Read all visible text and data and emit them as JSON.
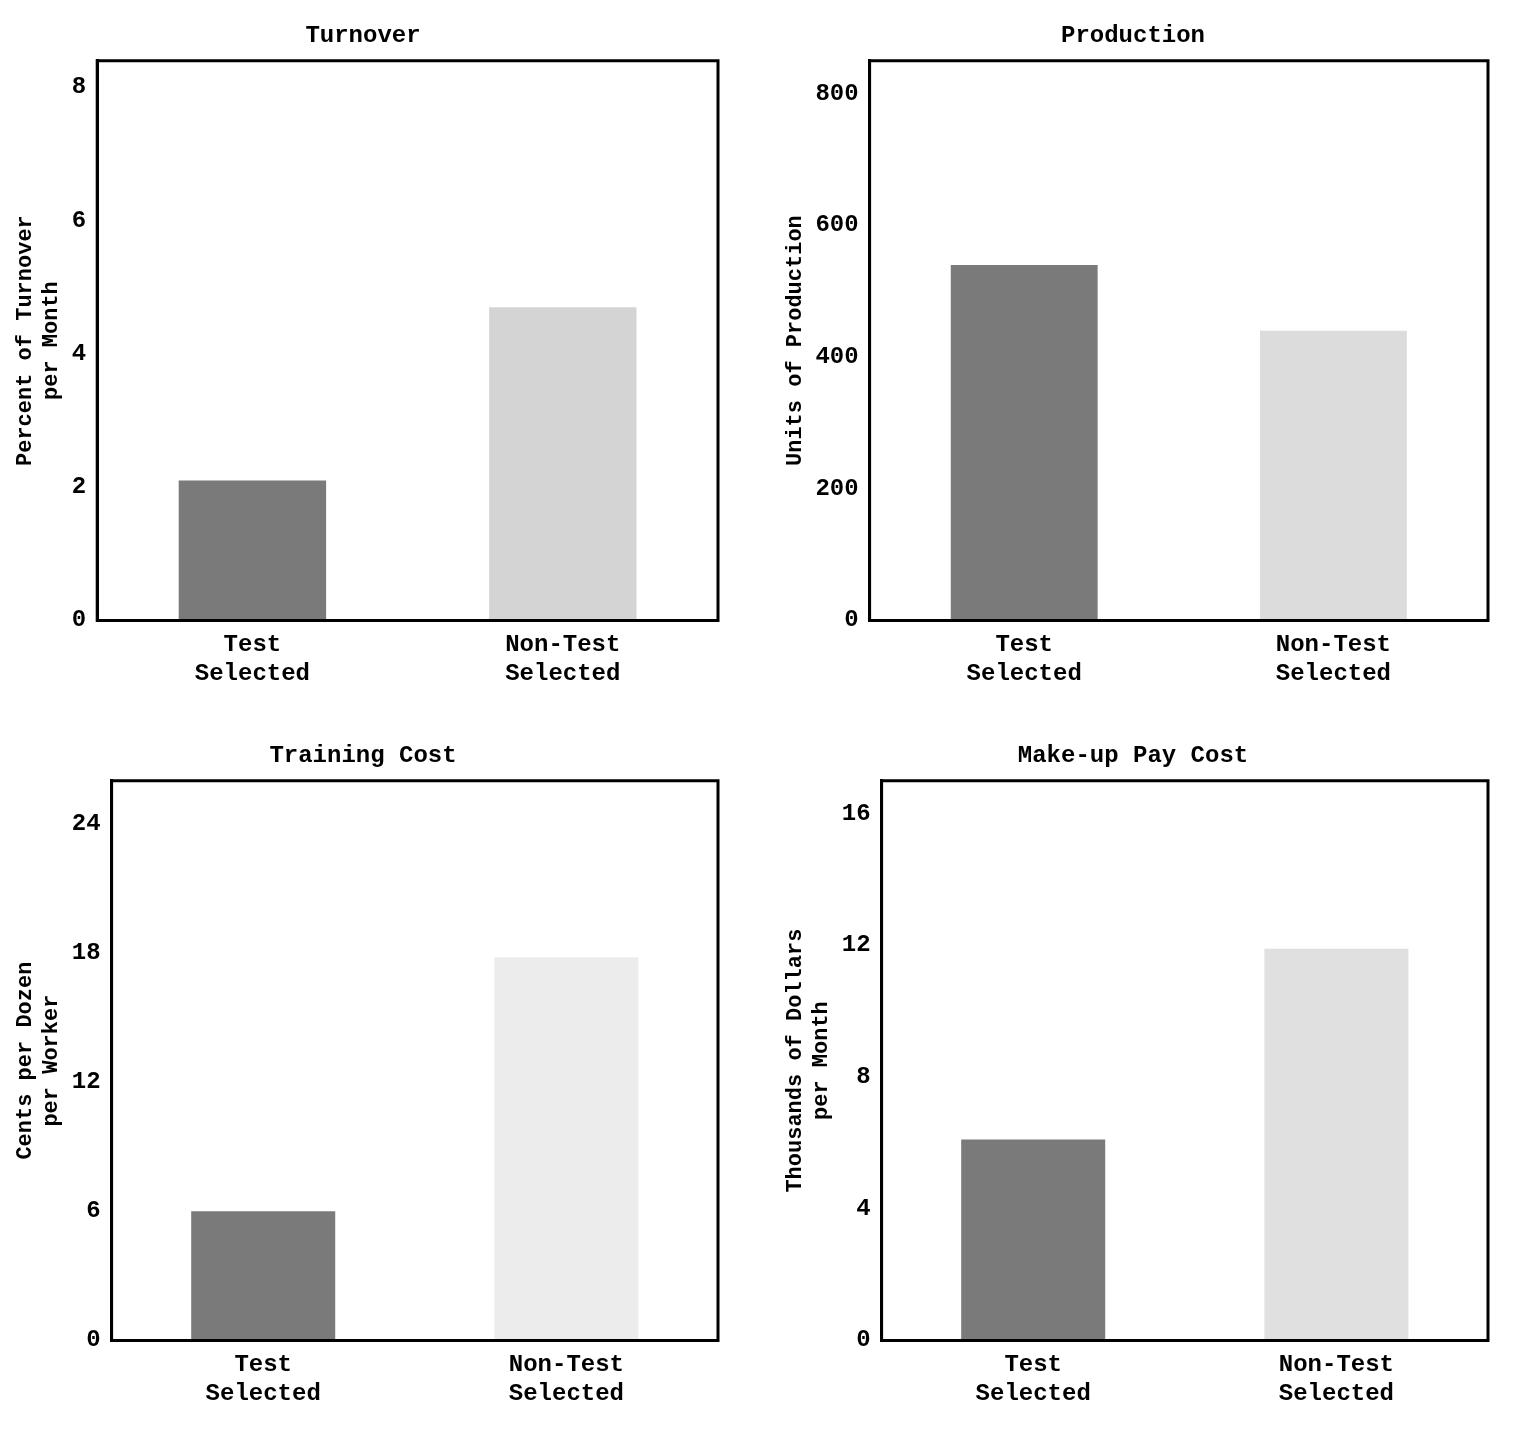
{
  "chart_data": [
    {
      "type": "bar",
      "title": "Turnover",
      "ylabel": "Percent of Turnover\nper Month",
      "categories": [
        "Test Selected",
        "Non-Test Selected"
      ],
      "values": [
        2.1,
        4.7
      ],
      "colors": [
        "#7a7a7a",
        "#d4d4d4"
      ],
      "ylim": [
        0,
        8.4
      ],
      "yticks": [
        0,
        2,
        4,
        6,
        8
      ],
      "grid": false,
      "legend": false
    },
    {
      "type": "bar",
      "title": "Production",
      "ylabel": "Units of Production",
      "categories": [
        "Test Selected",
        "Non-Test Selected"
      ],
      "values": [
        540,
        440
      ],
      "colors": [
        "#7a7a7a",
        "#dcdcdc"
      ],
      "ylim": [
        0,
        850
      ],
      "yticks": [
        0,
        200,
        400,
        600,
        800
      ],
      "grid": false,
      "legend": false
    },
    {
      "type": "bar",
      "title": "Training Cost",
      "ylabel": "Cents per Dozen\nper Worker",
      "categories": [
        "Test Selected",
        "Non-Test Selected"
      ],
      "values": [
        6,
        17.8
      ],
      "colors": [
        "#7a7a7a",
        "#ececec"
      ],
      "ylim": [
        0,
        26
      ],
      "yticks": [
        0,
        6,
        12,
        18,
        24
      ],
      "grid": false,
      "legend": false
    },
    {
      "type": "bar",
      "title": "Make-up Pay Cost",
      "ylabel": "Thousands of Dollars\nper Month",
      "categories": [
        "Test Selected",
        "Non-Test Selected"
      ],
      "values": [
        6.1,
        11.9
      ],
      "colors": [
        "#7a7a7a",
        "#e0e0e0"
      ],
      "ylim": [
        0,
        17
      ],
      "yticks": [
        0,
        4,
        8,
        12,
        16
      ],
      "grid": false,
      "legend": false
    }
  ]
}
